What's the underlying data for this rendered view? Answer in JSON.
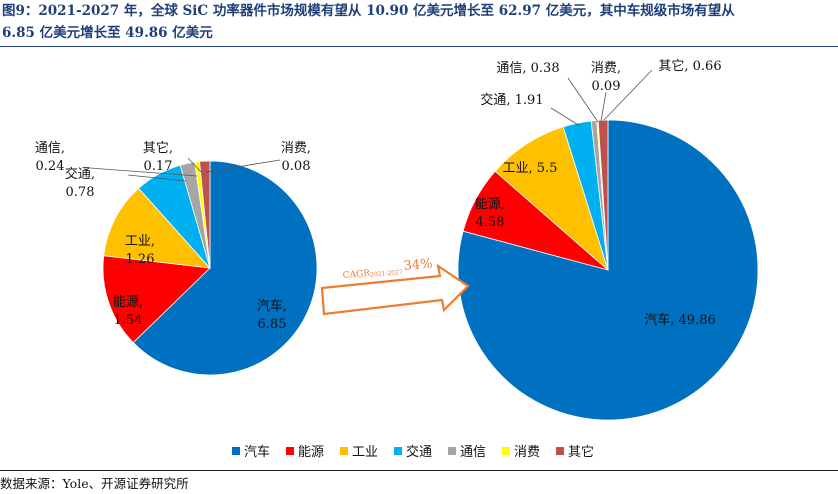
{
  "title": {
    "line1": "图9：2021-2027 年，全球 SiC 功率器件市场规模有望从 10.90 亿美元增长至 62.97 亿美元，其中车规级市场有望从",
    "line2": "6.85 亿美元增长至 49.86 亿美元"
  },
  "source": "数据来源：Yole、开源证券研究所",
  "chart_data": [
    {
      "type": "pie",
      "year": "2021",
      "categories": [
        "汽车",
        "能源",
        "工业",
        "交通",
        "通信",
        "消费",
        "其它"
      ],
      "values": [
        6.85,
        1.54,
        1.26,
        0.78,
        0.24,
        0.08,
        0.17
      ],
      "labels": {
        "汽车": "汽车, 6.85",
        "能源": "能源, 1.54",
        "工业": "工业, 1.26",
        "交通": "交通, 0.78",
        "通信": "通信, 0.24",
        "消费": "消费, 0.08",
        "其它": "其它, 0.17"
      }
    },
    {
      "type": "pie",
      "year": "2027",
      "categories": [
        "汽车",
        "能源",
        "工业",
        "交通",
        "通信",
        "消费",
        "其它"
      ],
      "values": [
        49.86,
        4.58,
        5.5,
        1.91,
        0.38,
        0.09,
        0.66
      ],
      "labels": {
        "汽车": "汽车, 49.86",
        "能源": "能源, 4.58",
        "工业": "工业, 5.5",
        "交通": "交通, 1.91",
        "通信": "通信, 0.38",
        "消费": "消费, 0.09",
        "其它": "其它, 0.66"
      }
    }
  ],
  "cagr": {
    "label": "CAGR",
    "period": "2021-2027",
    "value": "34%"
  },
  "legend": {
    "placement": "bottom",
    "items": [
      {
        "name": "汽车",
        "color": "#0070c0"
      },
      {
        "name": "能源",
        "color": "#ff0000"
      },
      {
        "name": "工业",
        "color": "#ffc000"
      },
      {
        "name": "交通",
        "color": "#00b0f0"
      },
      {
        "name": "通信",
        "color": "#a5a5a5"
      },
      {
        "name": "消费",
        "color": "#ffff00"
      },
      {
        "name": "其它",
        "color": "#c0504d"
      }
    ]
  },
  "colors": {
    "汽车": "#0070c0",
    "能源": "#ff0000",
    "工业": "#ffc000",
    "交通": "#00b0f0",
    "通信": "#a5a5a5",
    "消费": "#ffff00",
    "其它": "#c0504d",
    "title": "#1f3f7a",
    "arrow": "#ed7d31"
  }
}
